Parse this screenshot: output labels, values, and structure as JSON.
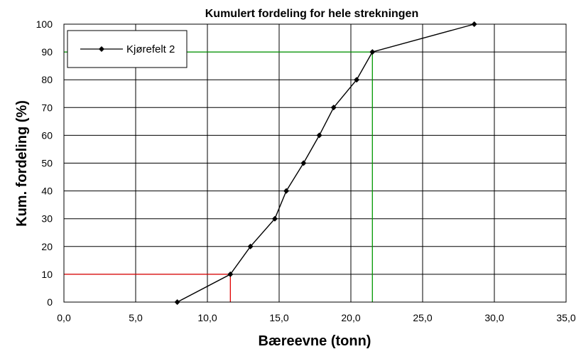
{
  "chart_data": {
    "type": "line",
    "title": "Kumulert fordeling for hele strekningen",
    "xlabel": "Bæreevne (tonn)",
    "ylabel": "Kum. fordeling (%)",
    "xlim": [
      0,
      35
    ],
    "ylim": [
      0,
      100
    ],
    "x_ticks": [
      0,
      5,
      10,
      15,
      20,
      25,
      30,
      35
    ],
    "x_tick_labels": [
      "0,0",
      "5,0",
      "10,0",
      "15,0",
      "20,0",
      "25,0",
      "30,0",
      "35,0"
    ],
    "y_ticks": [
      0,
      10,
      20,
      30,
      40,
      50,
      60,
      70,
      80,
      90,
      100
    ],
    "y_tick_labels": [
      "0",
      "10",
      "20",
      "30",
      "40",
      "50",
      "60",
      "70",
      "80",
      "90",
      "100"
    ],
    "grid": true,
    "legend_position": "top-left",
    "series": [
      {
        "name": "Kjørefelt 2",
        "color": "#000000",
        "marker": "diamond",
        "x": [
          7.9,
          11.6,
          13.0,
          14.7,
          15.5,
          16.7,
          17.8,
          18.8,
          20.4,
          21.5,
          28.6
        ],
        "y": [
          0,
          10,
          20,
          30,
          40,
          50,
          60,
          70,
          80,
          90,
          100
        ]
      }
    ],
    "reference_lines": [
      {
        "color": "#e00000",
        "x": 11.6,
        "y": 10
      },
      {
        "color": "#009900",
        "x": 21.5,
        "y": 90
      }
    ]
  }
}
